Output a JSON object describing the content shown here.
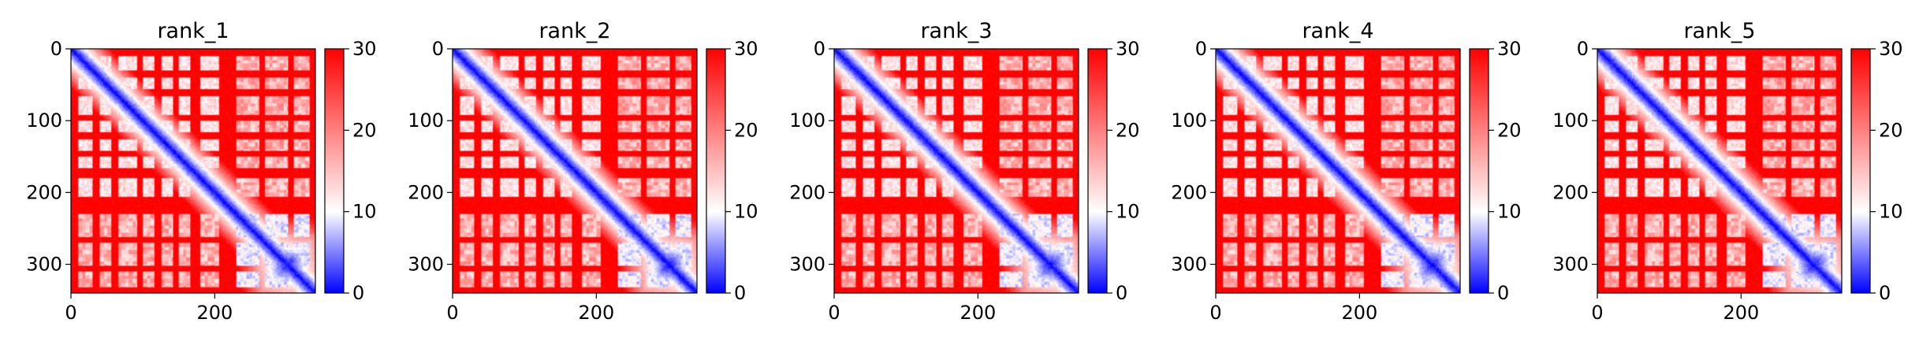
{
  "chart_data": [
    {
      "type": "heatmap",
      "title": "rank_1",
      "xticks": [
        0,
        200
      ],
      "yticks": [
        0,
        100,
        200,
        300
      ],
      "extent": [
        0,
        340
      ],
      "colorbar": {
        "ticks": [
          0,
          10,
          20,
          30
        ],
        "range": [
          0,
          30
        ],
        "colors": [
          "#0000ff",
          "#ffffff",
          "#ff0000"
        ]
      }
    },
    {
      "type": "heatmap",
      "title": "rank_2",
      "xticks": [
        0,
        200
      ],
      "yticks": [
        0,
        100,
        200,
        300
      ],
      "extent": [
        0,
        340
      ],
      "colorbar": {
        "ticks": [
          0,
          10,
          20,
          30
        ],
        "range": [
          0,
          30
        ],
        "colors": [
          "#0000ff",
          "#ffffff",
          "#ff0000"
        ]
      }
    },
    {
      "type": "heatmap",
      "title": "rank_3",
      "xticks": [
        0,
        200
      ],
      "yticks": [
        0,
        100,
        200,
        300
      ],
      "extent": [
        0,
        340
      ],
      "colorbar": {
        "ticks": [
          0,
          10,
          20,
          30
        ],
        "range": [
          0,
          30
        ],
        "colors": [
          "#0000ff",
          "#ffffff",
          "#ff0000"
        ]
      }
    },
    {
      "type": "heatmap",
      "title": "rank_4",
      "xticks": [
        0,
        200
      ],
      "yticks": [
        0,
        100,
        200,
        300
      ],
      "extent": [
        0,
        340
      ],
      "colorbar": {
        "ticks": [
          0,
          10,
          20,
          30
        ],
        "range": [
          0,
          30
        ],
        "colors": [
          "#0000ff",
          "#ffffff",
          "#ff0000"
        ]
      }
    },
    {
      "type": "heatmap",
      "title": "rank_5",
      "xticks": [
        0,
        200
      ],
      "yticks": [
        0,
        100,
        200,
        300
      ],
      "extent": [
        0,
        340
      ],
      "colorbar": {
        "ticks": [
          0,
          10,
          20,
          30
        ],
        "range": [
          0,
          30
        ],
        "colors": [
          "#0000ff",
          "#ffffff",
          "#ff0000"
        ]
      }
    }
  ]
}
